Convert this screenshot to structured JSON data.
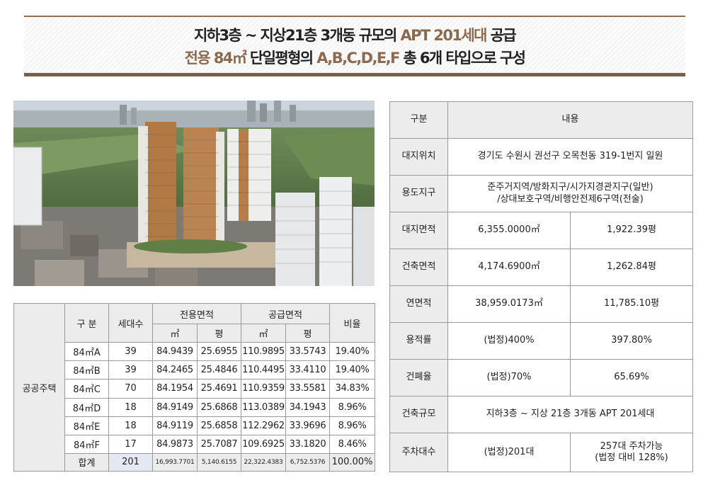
{
  "colors": {
    "accent": "#8b6a4f",
    "frame": "#7b5e47",
    "header_bg": "#ececec"
  },
  "banner": {
    "line1": {
      "a": "지하3층 ~ 지상21층 3개동 규모의 ",
      "b": "APT 201세대",
      "c": " 공급"
    },
    "line2": {
      "a": "전용 84㎡",
      "b": " 단일평형의 ",
      "c": "A,B,C,D,E,F",
      "d": " 총 6개 타입으로 구성"
    }
  },
  "photo": {
    "alt": "apartment-complex-rendering"
  },
  "units_table": {
    "headers": {
      "type": "구 분",
      "households": "세대수",
      "exclusive_area": "전용면적",
      "supply_area": "공급면적",
      "ratio": "비율",
      "sqm": "㎡",
      "pyeong": "평"
    },
    "category": "공공주택",
    "rows": [
      {
        "type": "84㎡A",
        "households": "39",
        "ex_sqm": "84.9439",
        "ex_py": "25.6955",
        "sup_sqm": "110.9895",
        "sup_py": "33.5743",
        "ratio": "19.40%"
      },
      {
        "type": "84㎡B",
        "households": "39",
        "ex_sqm": "84.2465",
        "ex_py": "25.4846",
        "sup_sqm": "110.4495",
        "sup_py": "33.4110",
        "ratio": "19.40%"
      },
      {
        "type": "84㎡C",
        "households": "70",
        "ex_sqm": "84.1954",
        "ex_py": "25.4691",
        "sup_sqm": "110.9359",
        "sup_py": "33.5581",
        "ratio": "34.83%"
      },
      {
        "type": "84㎡D",
        "households": "18",
        "ex_sqm": "84.9149",
        "ex_py": "25.6868",
        "sup_sqm": "113.0389",
        "sup_py": "34.1943",
        "ratio": "8.96%"
      },
      {
        "type": "84㎡E",
        "households": "18",
        "ex_sqm": "84.9119",
        "ex_py": "25.6858",
        "sup_sqm": "112.2962",
        "sup_py": "33.9696",
        "ratio": "8.96%"
      },
      {
        "type": "84㎡F",
        "households": "17",
        "ex_sqm": "84.9873",
        "ex_py": "25.7087",
        "sup_sqm": "109.6925",
        "sup_py": "33.1820",
        "ratio": "8.46%"
      }
    ],
    "total": {
      "label": "합계",
      "households": "201",
      "ex_sqm": "16,993.7701",
      "ex_py": "5,140.6155",
      "sup_sqm": "22,322.4383",
      "sup_py": "6,752.5376",
      "ratio": "100.00%"
    }
  },
  "info_table": {
    "headers": {
      "category": "구분",
      "content": "내용"
    },
    "location": {
      "label": "대지위치",
      "value": "경기도 수원시 권선구 오목천동 319-1번지 일원"
    },
    "zoning": {
      "label": "용도지구",
      "line1": "준주거지역/방화지구/시가지경관지구(일반)",
      "line2": "/상대보호구역/비행안전제6구역(전술)"
    },
    "site_area": {
      "label": "대지면적",
      "sqm": "6,355.0000㎡",
      "pyeong": "1,922.39평"
    },
    "building_area": {
      "label": "건축면적",
      "sqm": "4,174.6900㎡",
      "pyeong": "1,262.84평"
    },
    "floor_area": {
      "label": "연면적",
      "sqm": "38,959.0173㎡",
      "pyeong": "11,785.10평"
    },
    "far": {
      "label": "용적률",
      "legal": "(법정)400%",
      "actual": "397.80%"
    },
    "bcr": {
      "label": "건폐율",
      "legal": "(법정)70%",
      "actual": "65.69%"
    },
    "scale": {
      "label": "건축규모",
      "value": "지하3층 ~ 지상 21층 3개동 APT 201세대"
    },
    "parking": {
      "label": "주차대수",
      "legal": "(법정)201대",
      "line1": "257대 주차가능",
      "line2": "(법정 대비 128%)"
    }
  }
}
